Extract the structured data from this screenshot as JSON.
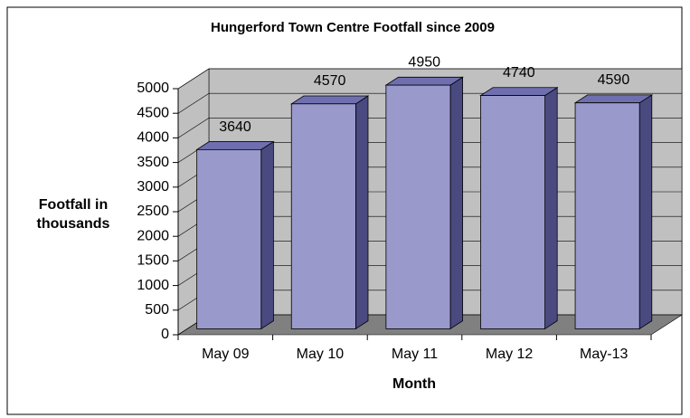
{
  "chart_data": {
    "type": "bar3d",
    "title": "Hungerford Town Centre Footfall since 2009",
    "x_label": "Month",
    "y_label": "Footfall in thousands",
    "categories": [
      "May 09",
      "May 10",
      "May 11",
      "May 12",
      "May-13"
    ],
    "values": [
      3640,
      4570,
      4950,
      4740,
      4590
    ],
    "color": "#9999cc",
    "ylim": [
      0,
      5000
    ],
    "yticks": [
      0,
      500,
      1000,
      1500,
      2000,
      2500,
      3000,
      3500,
      4000,
      4500,
      5000
    ],
    "grid": true
  }
}
